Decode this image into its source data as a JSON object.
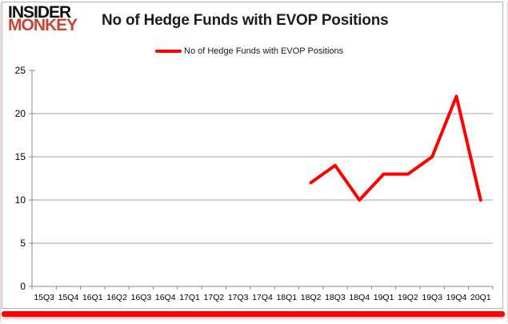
{
  "logo": {
    "line1": "INSIDER",
    "line2": "MONKEY",
    "line1_color": "#111111",
    "line2_color": "#c64534"
  },
  "header": {
    "title": "No of Hedge Funds with EVOP Positions"
  },
  "legend": {
    "label": "No of Hedge Funds with EVOP Positions",
    "line_color": "#fe0000"
  },
  "page": {
    "bottom_bar_color": "#fe0000"
  },
  "chart_data": {
    "type": "line",
    "title": "No of Hedge Funds with EVOP Positions",
    "categories": [
      "15Q3",
      "15Q4",
      "16Q1",
      "16Q2",
      "16Q3",
      "16Q4",
      "17Q1",
      "17Q2",
      "17Q3",
      "17Q4",
      "18Q1",
      "18Q2",
      "18Q3",
      "18Q4",
      "19Q1",
      "19Q2",
      "19Q3",
      "19Q4",
      "20Q1"
    ],
    "series": [
      {
        "name": "No of Hedge Funds with EVOP Positions",
        "color": "#fe0000",
        "values": [
          null,
          null,
          null,
          null,
          null,
          null,
          null,
          null,
          null,
          null,
          null,
          12,
          14,
          10,
          13,
          13,
          15,
          22,
          10
        ]
      }
    ],
    "xlabel": "",
    "ylabel": "",
    "ylim": [
      0,
      25
    ],
    "yticks": [
      0,
      5,
      10,
      15,
      20,
      25
    ],
    "grid": "horizontal-major-only",
    "grid_color": "#a6a6a6",
    "axis_color": "#898989",
    "legend_position": "top-center"
  }
}
